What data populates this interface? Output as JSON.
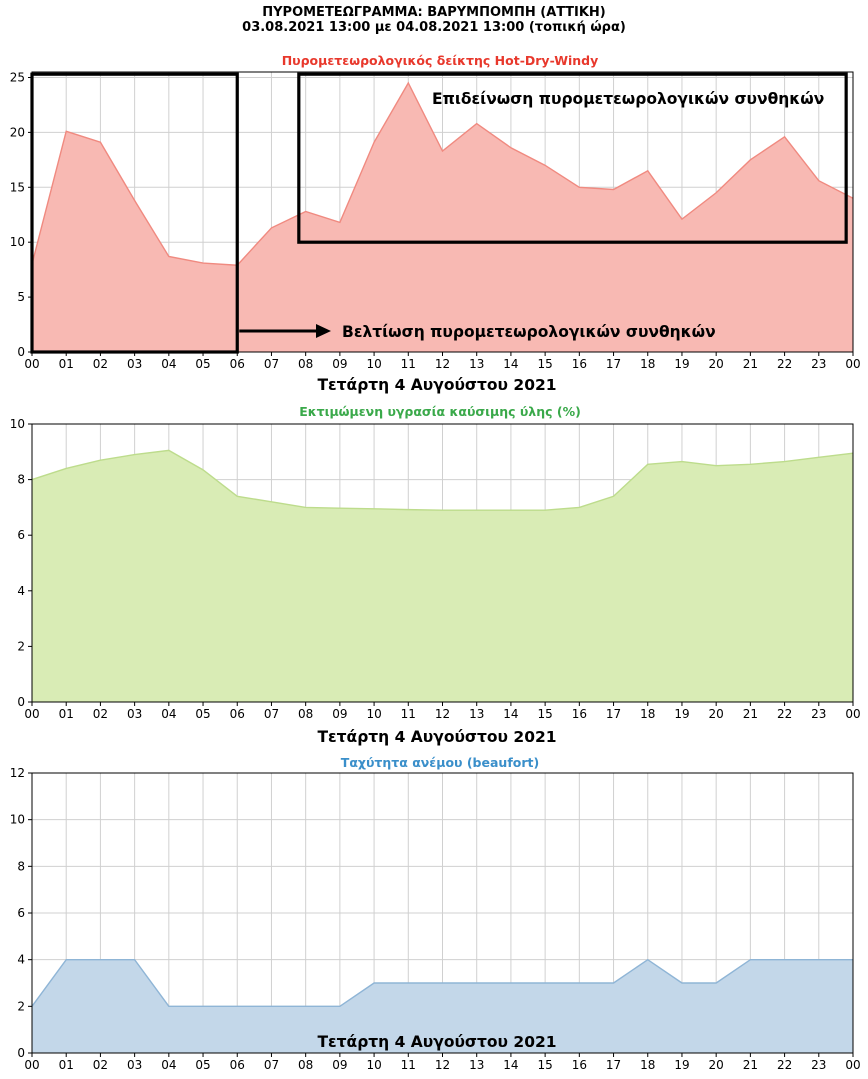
{
  "header": {
    "title": "ΠΥΡΟΜΕΤΕΩΓΡΑΜΜΑ: ΒΑΡΥΜΠΟΜΠΗ (ΑΤΤΙΚΗ)",
    "subtitle": "03.08.2021 13:00 με 04.08.2021 13:00 (τοπική ώρα)"
  },
  "chart_data": [
    {
      "type": "area",
      "title": "Πυρομετεωρολογικός δείκτης Hot-Dry-Windy",
      "xlabel": "Τετάρτη 4 Αυγούστου 2021",
      "ylabel": "",
      "categories": [
        "00",
        "01",
        "02",
        "03",
        "04",
        "05",
        "06",
        "07",
        "08",
        "09",
        "10",
        "11",
        "12",
        "13",
        "14",
        "15",
        "16",
        "17",
        "18",
        "19",
        "20",
        "21",
        "22",
        "23",
        "00"
      ],
      "values": [
        8,
        20.1,
        19.1,
        13.8,
        8.7,
        8.1,
        7.9,
        11.3,
        12.8,
        11.8,
        19.1,
        24.5,
        18.3,
        20.8,
        18.6,
        17,
        15,
        14.8,
        16.5,
        12.1,
        14.5,
        17.5,
        19.6,
        15.6,
        14
      ],
      "ylim": [
        0,
        25.5
      ],
      "yticks": [
        0,
        5,
        10,
        15,
        20,
        25
      ],
      "grid": true,
      "colors": {
        "fill": "#f8b9b3",
        "line": "#f08a80",
        "title": "#e8382c"
      },
      "annotations": [
        {
          "text": "Επιδείνωση πυρομετεωρολογικών συνθηκών",
          "box_x": [
            7.8,
            23.8
          ],
          "box_y": [
            10,
            25.3
          ]
        },
        {
          "text": "Βελτίωση πυρομετεωρολογικών συνθηκών",
          "box_x": [
            0,
            6
          ],
          "box_y": [
            0,
            25.3
          ],
          "arrow": true
        }
      ]
    },
    {
      "type": "area",
      "title": "Εκτιμώμενη υγρασία καύσιμης ύλης (%)",
      "xlabel": "Τετάρτη 4 Αυγούστου 2021",
      "ylabel": "",
      "categories": [
        "00",
        "01",
        "02",
        "03",
        "04",
        "05",
        "06",
        "07",
        "08",
        "09",
        "10",
        "11",
        "12",
        "13",
        "14",
        "15",
        "16",
        "17",
        "18",
        "19",
        "20",
        "21",
        "22",
        "23",
        "00"
      ],
      "values": [
        8,
        8.4,
        8.7,
        8.9,
        9.05,
        8.35,
        7.4,
        7.2,
        7,
        6.97,
        6.95,
        6.92,
        6.9,
        6.9,
        6.9,
        6.9,
        7,
        7.4,
        8.55,
        8.65,
        8.5,
        8.55,
        8.65,
        8.8,
        8.95
      ],
      "ylim": [
        0,
        10
      ],
      "yticks": [
        0,
        2,
        4,
        6,
        8,
        10
      ],
      "grid": true,
      "colors": {
        "fill": "#d9ecb5",
        "line": "#bddc8c",
        "title": "#3aa94a"
      }
    },
    {
      "type": "area",
      "title": "Ταχύτητα ανέμου (beaufort)",
      "xlabel": "Τετάρτη 4 Αυγούστου 2021",
      "ylabel": "",
      "categories": [
        "00",
        "01",
        "02",
        "03",
        "04",
        "05",
        "06",
        "07",
        "08",
        "09",
        "10",
        "11",
        "12",
        "13",
        "14",
        "15",
        "16",
        "17",
        "18",
        "19",
        "20",
        "21",
        "22",
        "23",
        "00"
      ],
      "values": [
        2,
        4,
        4,
        4,
        2,
        2,
        2,
        2,
        2,
        2,
        3,
        3,
        3,
        3,
        3,
        3,
        3,
        3,
        4,
        3,
        3,
        4,
        4,
        4,
        4
      ],
      "ylim": [
        0,
        12
      ],
      "yticks": [
        0,
        2,
        4,
        6,
        8,
        10,
        12
      ],
      "grid": true,
      "colors": {
        "fill": "#c3d7e9",
        "line": "#8fb5d6",
        "title": "#3a8fca"
      }
    }
  ]
}
